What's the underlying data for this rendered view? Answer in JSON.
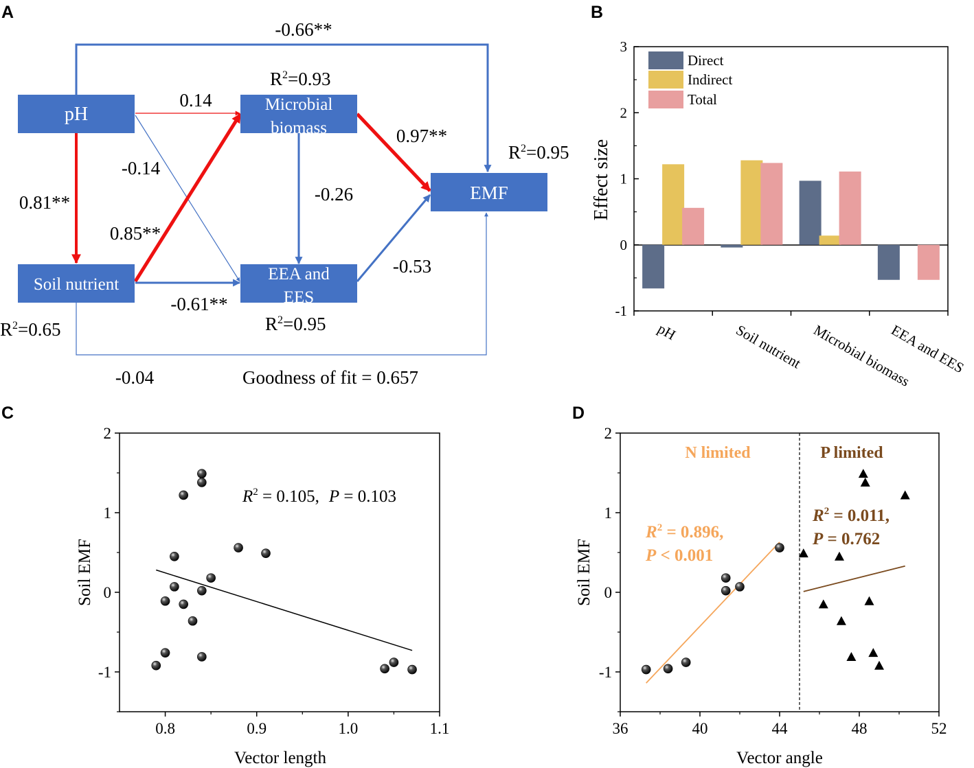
{
  "panel_labels": {
    "a": "A",
    "b": "B",
    "c": "C",
    "d": "D"
  },
  "panel_a": {
    "nodes": {
      "ph": "pH",
      "soil": "Soil nutrient",
      "microbial_l1": "Microbial",
      "microbial_l2": "biomass",
      "eea_l1": "EEA and",
      "eea_l2": "EES",
      "emf": "EMF"
    },
    "r2": {
      "microbial": {
        "base": "R",
        "sup": "2",
        "val": "=0.93"
      },
      "emf": {
        "base": "R",
        "sup": "2",
        "val": "=0.95"
      },
      "eea": {
        "base": "R",
        "sup": "2",
        "val": "=0.95"
      },
      "soil": {
        "base": "R",
        "sup": "2",
        "val": "=0.65"
      }
    },
    "paths": {
      "ph_emf": "-0.66**",
      "ph_microbial": "0.14",
      "microbial_emf": "0.97**",
      "ph_eea": "-0.14",
      "ph_soil": "0.81**",
      "microbial_eea": "-0.26",
      "soil_microbial": "0.85**",
      "eea_emf": "-0.53",
      "soil_eea": "-0.61**",
      "soil_emf": "-0.04"
    },
    "goodness": "Goodness of fit = 0.657"
  },
  "chart_data": [
    {
      "panel": "B",
      "type": "bar",
      "categories": [
        "pH",
        "Soil nutrient",
        "Microbial biomass",
        "EEA and EES"
      ],
      "series": [
        {
          "name": "Direct",
          "color": "#5d6d89",
          "values": [
            -0.66,
            -0.04,
            0.97,
            -0.53
          ]
        },
        {
          "name": "Indirect",
          "color": "#e6c35c",
          "values": [
            1.22,
            1.28,
            0.14,
            0
          ]
        },
        {
          "name": "Total",
          "color": "#e89f9f",
          "values": [
            0.56,
            1.24,
            1.11,
            -0.53
          ]
        }
      ],
      "ylabel": "Effect size",
      "ylim": [
        -1,
        3
      ],
      "yticks": [
        "-1",
        "0",
        "1",
        "2",
        "3"
      ],
      "legend": "top-left"
    },
    {
      "panel": "C",
      "type": "scatter",
      "xlabel": "Vector length",
      "ylabel": "Soil EMF",
      "xlim": [
        0.75,
        1.1
      ],
      "ylim": [
        -1.5,
        2
      ],
      "xticks": [
        "0.8",
        "0.9",
        "1.0",
        "1.1"
      ],
      "yticks": [
        "-1",
        "0",
        "1",
        "2"
      ],
      "points": [
        [
          0.79,
          -0.92
        ],
        [
          0.8,
          -0.76
        ],
        [
          0.8,
          -0.11
        ],
        [
          0.81,
          0.07
        ],
        [
          0.81,
          0.45
        ],
        [
          0.82,
          1.22
        ],
        [
          0.82,
          -0.15
        ],
        [
          0.83,
          -0.36
        ],
        [
          0.84,
          1.49
        ],
        [
          0.84,
          1.38
        ],
        [
          0.84,
          0.02
        ],
        [
          0.84,
          -0.81
        ],
        [
          0.85,
          0.18
        ],
        [
          0.88,
          0.56
        ],
        [
          0.91,
          0.49
        ],
        [
          1.04,
          -0.96
        ],
        [
          1.05,
          -0.88
        ],
        [
          1.07,
          -0.97
        ]
      ],
      "fit": [
        [
          0.79,
          0.28
        ],
        [
          1.07,
          -0.73
        ]
      ],
      "annotation": {
        "r2_italic": "R",
        "r2_sup": "2",
        "r2_val": " = 0.105,",
        "p_italic": "P",
        "p_val": " = 0.103"
      }
    },
    {
      "panel": "D",
      "type": "scatter",
      "xlabel": "Vector angle",
      "ylabel": "Soil EMF",
      "xlim": [
        36,
        52
      ],
      "ylim": [
        -1.5,
        2
      ],
      "xticks": [
        "36",
        "40",
        "44",
        "48",
        "52"
      ],
      "yticks": [
        "-1",
        "0",
        "1",
        "2"
      ],
      "divider_x": 45,
      "groups": [
        {
          "name": "N limited",
          "color": "#f5a65b",
          "marker": "sphere",
          "points": [
            [
              37.3,
              -0.97
            ],
            [
              38.4,
              -0.96
            ],
            [
              39.3,
              -0.88
            ],
            [
              41.3,
              0.18
            ],
            [
              41.3,
              0.02
            ],
            [
              42.0,
              0.07
            ],
            [
              44.0,
              0.56
            ]
          ],
          "fit": [
            [
              37.3,
              -1.14
            ],
            [
              44.0,
              0.63
            ]
          ],
          "annotation": {
            "r2_italic": "R",
            "r2_sup": "2",
            "r2_val": " = 0.896,",
            "p_italic": "P",
            "p_val": " < 0.001"
          }
        },
        {
          "name": "P limited",
          "color": "#7a4a1e",
          "marker": "triangle",
          "points": [
            [
              45.2,
              0.49
            ],
            [
              46.2,
              -0.15
            ],
            [
              47.0,
              0.45
            ],
            [
              47.1,
              -0.36
            ],
            [
              47.6,
              -0.81
            ],
            [
              48.2,
              1.49
            ],
            [
              48.3,
              1.38
            ],
            [
              48.5,
              -0.11
            ],
            [
              48.7,
              -0.76
            ],
            [
              49.0,
              -0.92
            ],
            [
              50.3,
              1.22
            ]
          ],
          "fit": [
            [
              45.2,
              0.01
            ],
            [
              50.3,
              0.33
            ]
          ],
          "annotation": {
            "r2_italic": "R",
            "r2_sup": "2",
            "r2_val": " = 0.011,",
            "p_italic": "P",
            "p_val": " = 0.762"
          }
        }
      ]
    }
  ]
}
